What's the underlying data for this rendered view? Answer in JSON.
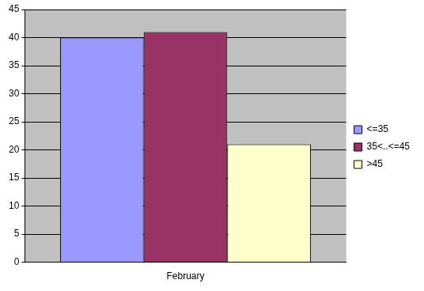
{
  "chart_data": {
    "type": "bar",
    "categories": [
      "February"
    ],
    "series": [
      {
        "name": "<=35",
        "color": "#9999ff",
        "values": [
          40
        ]
      },
      {
        "name": "35<..<=45",
        "color": "#993366",
        "values": [
          41
        ]
      },
      {
        "name": ">45",
        "color": "#ffffcc",
        "values": [
          21
        ]
      }
    ],
    "ylim": [
      0,
      45
    ],
    "yticks": [
      0,
      5,
      10,
      15,
      20,
      25,
      30,
      35,
      40,
      45
    ],
    "grid": true,
    "legend": "right"
  }
}
